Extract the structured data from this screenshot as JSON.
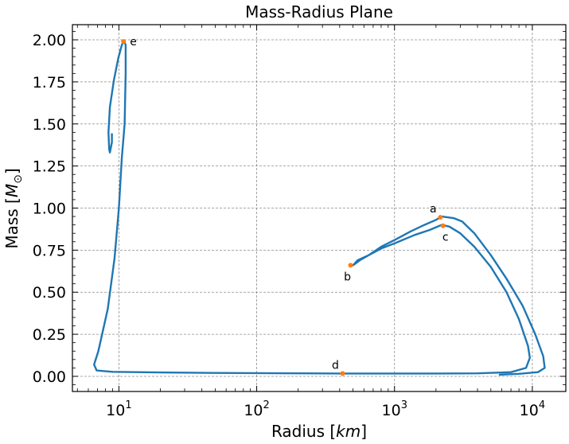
{
  "chart_data": {
    "type": "line",
    "title": "Mass-Radius Plane",
    "xlabel": "Radius",
    "xlabel_unit": "km",
    "ylabel": "Mass",
    "ylabel_unit": "M",
    "ylabel_unit_sub": "⊙",
    "xscale": "log",
    "xlim": [
      4.6,
      17500
    ],
    "ylim": [
      -0.09,
      2.09
    ],
    "grid": true,
    "x_ticks": [
      {
        "value": 10,
        "base": "10",
        "exp": "1"
      },
      {
        "value": 100,
        "base": "10",
        "exp": "2"
      },
      {
        "value": 1000,
        "base": "10",
        "exp": "3"
      },
      {
        "value": 10000,
        "base": "10",
        "exp": "4"
      }
    ],
    "y_ticks": [
      {
        "value": 0.0,
        "label": "0.00"
      },
      {
        "value": 0.25,
        "label": "0.25"
      },
      {
        "value": 0.5,
        "label": "0.50"
      },
      {
        "value": 0.75,
        "label": "0.75"
      },
      {
        "value": 1.0,
        "label": "1.00"
      },
      {
        "value": 1.25,
        "label": "1.25"
      },
      {
        "value": 1.5,
        "label": "1.50"
      },
      {
        "value": 1.75,
        "label": "1.75"
      },
      {
        "value": 2.0,
        "label": "2.00"
      }
    ],
    "series": [
      {
        "color": "#1f77b4",
        "points": [
          [
            8.9,
            1.44
          ],
          [
            8.9,
            1.39
          ],
          [
            8.6,
            1.33
          ],
          [
            8.5,
            1.35
          ],
          [
            8.4,
            1.45
          ],
          [
            8.6,
            1.6
          ],
          [
            9.2,
            1.76
          ],
          [
            9.9,
            1.89
          ],
          [
            10.5,
            1.97
          ],
          [
            10.9,
            1.99
          ],
          [
            11.2,
            1.97
          ],
          [
            11.2,
            1.8
          ],
          [
            11.0,
            1.5
          ],
          [
            10.5,
            1.3
          ],
          [
            10.0,
            1.0
          ],
          [
            9.3,
            0.7
          ],
          [
            8.3,
            0.4
          ],
          [
            7.1,
            0.15
          ],
          [
            6.6,
            0.07
          ],
          [
            6.9,
            0.035
          ],
          [
            9.0,
            0.027
          ],
          [
            20,
            0.023
          ],
          [
            50,
            0.02
          ],
          [
            100,
            0.019
          ],
          [
            200,
            0.018
          ],
          [
            420,
            0.017
          ],
          [
            1000,
            0.017
          ],
          [
            2000,
            0.017
          ],
          [
            4000,
            0.018
          ],
          [
            7000,
            0.025
          ],
          [
            9000,
            0.05
          ],
          [
            9600,
            0.11
          ],
          [
            9300,
            0.18
          ],
          [
            8000,
            0.34
          ],
          [
            6500,
            0.5
          ],
          [
            5000,
            0.65
          ],
          [
            3800,
            0.77
          ],
          [
            3000,
            0.85
          ],
          [
            2500,
            0.89
          ],
          [
            2200,
            0.9
          ],
          [
            1800,
            0.87
          ],
          [
            1400,
            0.84
          ],
          [
            1000,
            0.79
          ],
          [
            800,
            0.76
          ],
          [
            650,
            0.72
          ],
          [
            560,
            0.69
          ],
          [
            500,
            0.66
          ],
          [
            540,
            0.69
          ],
          [
            650,
            0.72
          ],
          [
            800,
            0.77
          ],
          [
            1000,
            0.81
          ],
          [
            1300,
            0.86
          ],
          [
            1650,
            0.9
          ],
          [
            2000,
            0.93
          ],
          [
            2200,
            0.95
          ],
          [
            2700,
            0.94
          ],
          [
            3100,
            0.92
          ],
          [
            3800,
            0.85
          ],
          [
            5000,
            0.72
          ],
          [
            6500,
            0.58
          ],
          [
            8500,
            0.42
          ],
          [
            10500,
            0.25
          ],
          [
            12000,
            0.12
          ],
          [
            12300,
            0.05
          ],
          [
            11000,
            0.025
          ],
          [
            8000,
            0.015
          ],
          [
            5800,
            0.01
          ]
        ]
      }
    ],
    "annotations": [
      {
        "label": "a",
        "x": 2150,
        "y": 0.945,
        "label_pos": "above-left"
      },
      {
        "label": "b",
        "x": 480,
        "y": 0.66,
        "label_pos": "below-left"
      },
      {
        "label": "c",
        "x": 2250,
        "y": 0.895,
        "label_pos": "below-right"
      },
      {
        "label": "d",
        "x": 420,
        "y": 0.017,
        "label_pos": "above-left"
      },
      {
        "label": "e",
        "x": 10.8,
        "y": 1.99,
        "label_pos": "right"
      }
    ],
    "annotation_color": "#ff7f0e"
  }
}
